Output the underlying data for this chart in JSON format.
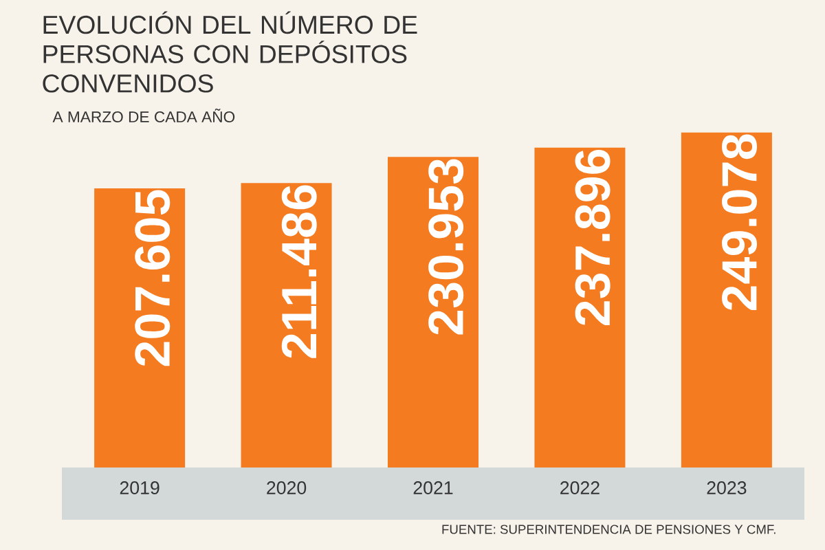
{
  "chart_data": {
    "type": "bar",
    "title": "EVOLUCIÓN DEL NÚMERO DE PERSONAS CON DEPÓSITOS CONVENIDOS",
    "subtitle": "A MARZO DE CADA AÑO",
    "categories": [
      "2019",
      "2020",
      "2021",
      "2022",
      "2023"
    ],
    "values": [
      207605,
      211486,
      230953,
      237896,
      249078
    ],
    "value_labels": [
      "207.605",
      "211.486",
      "230.953",
      "237.896",
      "249.078"
    ],
    "color": "#f47b20",
    "annotations": [
      "FUENTE: SUPERINTENDENCIA DE PENSIONES Y CMF."
    ]
  }
}
